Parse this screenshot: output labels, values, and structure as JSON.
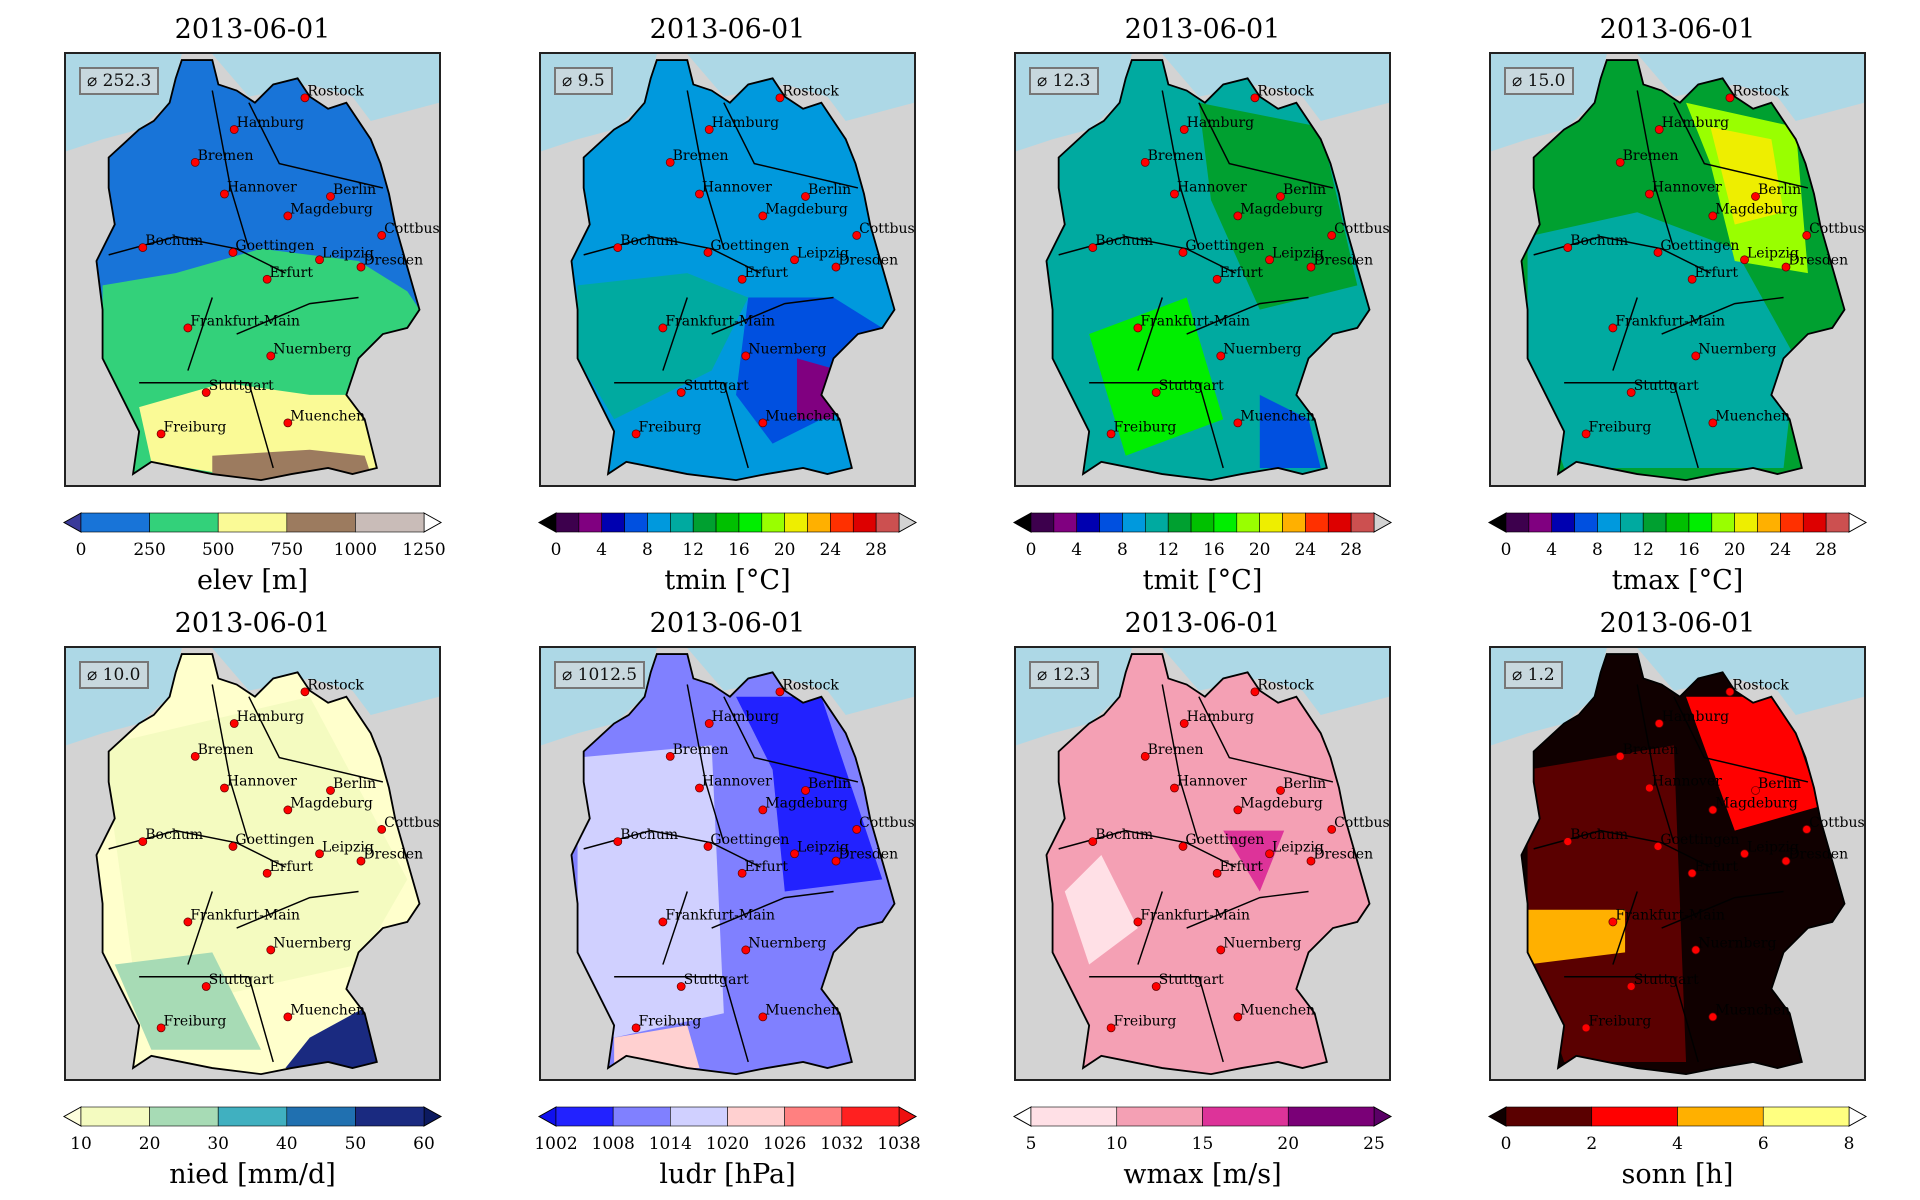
{
  "chart_data": [
    {
      "type": "heatmap",
      "title": "2013-06-01",
      "variable": "elev",
      "clabel": "elev [m]",
      "mean_label": "⌀ 252.3",
      "range": [
        0,
        1250
      ],
      "ticks": [
        0,
        250,
        500,
        750,
        1000,
        1250
      ],
      "bins": [
        0,
        250,
        500,
        750,
        1000,
        1250
      ],
      "colors": [
        "#1874d8",
        "#33d17a",
        "#fafa96",
        "#9c7b5f",
        "#c9bcb8"
      ],
      "extend_colors": [
        "#3a3a9a",
        "#ffffff"
      ],
      "map_colors": [
        "#1874d8",
        "#33d17a",
        "#fafa96",
        "#9c7b5f"
      ]
    },
    {
      "type": "heatmap",
      "title": "2013-06-01",
      "variable": "tmin",
      "clabel": "tmin [°C]",
      "mean_label": "⌀  9.5",
      "range": [
        0,
        30
      ],
      "ticks": [
        0,
        4,
        8,
        12,
        16,
        20,
        24,
        28
      ],
      "bins": [
        0,
        2,
        4,
        6,
        8,
        10,
        12,
        14,
        16,
        18,
        20,
        22,
        24,
        26,
        28,
        30
      ],
      "colors": [
        "#3d004d",
        "#800080",
        "#0000b0",
        "#0050e0",
        "#0099dd",
        "#00aaa0",
        "#00a030",
        "#00c000",
        "#00ee00",
        "#99ff00",
        "#eeee00",
        "#ffb000",
        "#ff3000",
        "#dd0000",
        "#cc5050"
      ],
      "extend_colors": [
        "#000000",
        "#d3d3d3"
      ],
      "map_colors": [
        "#0099dd",
        "#00aaa0",
        "#0050e0",
        "#800080"
      ]
    },
    {
      "type": "heatmap",
      "title": "2013-06-01",
      "variable": "tmit",
      "clabel": "tmit [°C]",
      "mean_label": "⌀ 12.3",
      "range": [
        0,
        30
      ],
      "ticks": [
        0,
        4,
        8,
        12,
        16,
        20,
        24,
        28
      ],
      "bins": [
        0,
        2,
        4,
        6,
        8,
        10,
        12,
        14,
        16,
        18,
        20,
        22,
        24,
        26,
        28,
        30
      ],
      "colors": [
        "#3d004d",
        "#800080",
        "#0000b0",
        "#0050e0",
        "#0099dd",
        "#00aaa0",
        "#00a030",
        "#00c000",
        "#00ee00",
        "#99ff00",
        "#eeee00",
        "#ffb000",
        "#ff3000",
        "#dd0000",
        "#cc5050"
      ],
      "extend_colors": [
        "#000000",
        "#d3d3d3"
      ],
      "map_colors": [
        "#00aaa0",
        "#00a030",
        "#00ee00",
        "#0050e0"
      ]
    },
    {
      "type": "heatmap",
      "title": "2013-06-01",
      "variable": "tmax",
      "clabel": "tmax [°C]",
      "mean_label": "⌀ 15.0",
      "range": [
        0,
        30
      ],
      "ticks": [
        0,
        4,
        8,
        12,
        16,
        20,
        24,
        28
      ],
      "bins": [
        0,
        2,
        4,
        6,
        8,
        10,
        12,
        14,
        16,
        18,
        20,
        22,
        24,
        26,
        28,
        30
      ],
      "colors": [
        "#3d004d",
        "#800080",
        "#0000b0",
        "#0050e0",
        "#0099dd",
        "#00aaa0",
        "#00a030",
        "#00c000",
        "#00ee00",
        "#99ff00",
        "#eeee00",
        "#ffb000",
        "#ff3000",
        "#dd0000",
        "#cc5050"
      ],
      "extend_colors": [
        "#000000",
        "#ffffff"
      ],
      "map_colors": [
        "#00a030",
        "#00aaa0",
        "#99ff00",
        "#eeee00"
      ]
    },
    {
      "type": "heatmap",
      "title": "2013-06-01",
      "variable": "nied",
      "clabel": "nied [mm/d]",
      "mean_label": "⌀ 10.0",
      "range": [
        10,
        60
      ],
      "ticks": [
        10,
        20,
        30,
        40,
        50,
        60
      ],
      "bins": [
        10,
        20,
        30,
        40,
        50,
        60
      ],
      "colors": [
        "#f4fbc0",
        "#a7dbb5",
        "#40b0c0",
        "#2070b0",
        "#1a2a80"
      ],
      "extend_colors": [
        "#ffffdd",
        "#0c1a60"
      ],
      "map_colors": [
        "#ffffcc",
        "#f4fbc0",
        "#a7dbb5",
        "#1a2a80"
      ]
    },
    {
      "type": "heatmap",
      "title": "2013-06-01",
      "variable": "ludr",
      "clabel": "ludr [hPa]",
      "mean_label": "⌀ 1012.5",
      "range": [
        1002,
        1038
      ],
      "ticks": [
        1002,
        1008,
        1014,
        1020,
        1026,
        1032,
        1038
      ],
      "bins": [
        1002,
        1008,
        1014,
        1020,
        1026,
        1032,
        1038
      ],
      "colors": [
        "#2222ff",
        "#8080ff",
        "#d0d0ff",
        "#ffd0d0",
        "#ff8080",
        "#ff2020"
      ],
      "extend_colors": [
        "#1010ee",
        "#ee1010"
      ],
      "map_colors": [
        "#8080ff",
        "#d0d0ff",
        "#2222ff",
        "#ffd0d0"
      ]
    },
    {
      "type": "heatmap",
      "title": "2013-06-01",
      "variable": "wmax",
      "clabel": "wmax [m/s]",
      "mean_label": "⌀ 12.3",
      "range": [
        5,
        25
      ],
      "ticks": [
        5,
        10,
        15,
        20,
        25
      ],
      "bins": [
        5,
        10,
        15,
        20,
        25
      ],
      "colors": [
        "#ffe0e6",
        "#f4a0b4",
        "#dd3399",
        "#7a0077"
      ],
      "extend_colors": [
        "#ffffff",
        "#5a0066"
      ],
      "map_colors": [
        "#f4a0b4",
        "#ffe0e6",
        "#dd3399",
        "#f4a0b4"
      ]
    },
    {
      "type": "heatmap",
      "title": "2013-06-01",
      "variable": "sonn",
      "clabel": "sonn [h]",
      "mean_label": "⌀  1.2",
      "range": [
        0,
        8
      ],
      "ticks": [
        0,
        2,
        4,
        6,
        8
      ],
      "bins": [
        0,
        2,
        4,
        6,
        8
      ],
      "colors": [
        "#5a0000",
        "#ff0000",
        "#ffb000",
        "#ffff80"
      ],
      "extend_colors": [
        "#100000",
        "#ffffff"
      ],
      "map_colors": [
        "#100000",
        "#5a0000",
        "#ff0000",
        "#ffb000"
      ]
    }
  ],
  "cities": [
    "Rostock",
    "Hamburg",
    "Bremen",
    "Hannover",
    "Berlin",
    "Magdeburg",
    "Cottbus",
    "Bochum",
    "Goettingen",
    "Leipzig",
    "Dresden",
    "Erfurt",
    "Frankfurt-Main",
    "Nuernberg",
    "Stuttgart",
    "Muenchen",
    "Freiburg"
  ],
  "colors": {
    "sea": "#add8e6",
    "land": "#d3d3d3",
    "city_marker": "#ff0000"
  }
}
